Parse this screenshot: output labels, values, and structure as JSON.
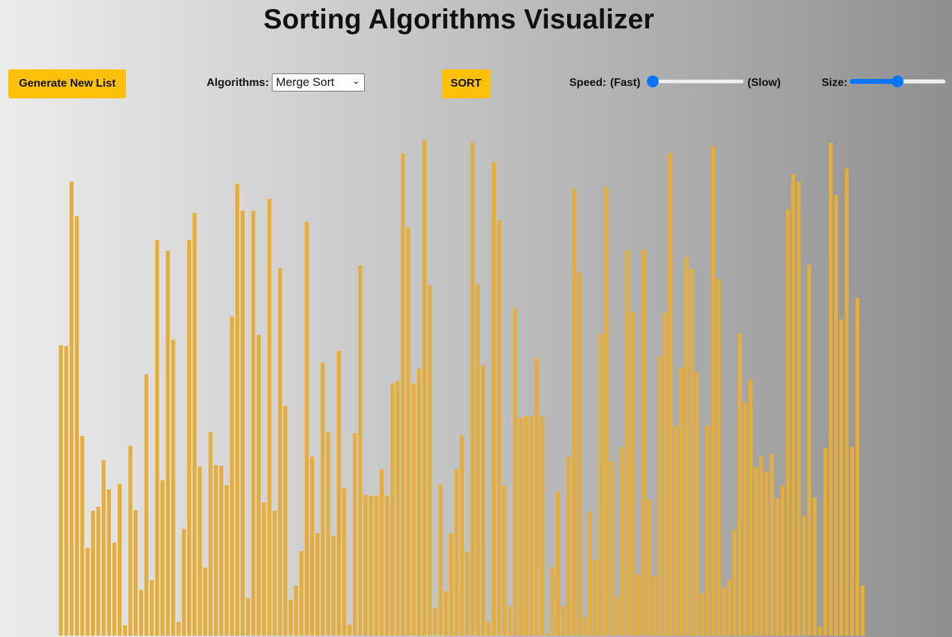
{
  "header": {
    "title": "Sorting Algorithms Visualizer"
  },
  "toolbar": {
    "generate_label": "Generate New List",
    "algorithms_label": "Algorithms:",
    "algorithm_selected": "Merge Sort",
    "sort_label": "SORT",
    "speed_label": "Speed:",
    "speed_fast": "(Fast)",
    "speed_slow": "(Slow)",
    "speed_value": 0.0,
    "size_label": "Size:",
    "size_value": 0.49
  },
  "colors": {
    "accent": "#ffc107",
    "bar": "#e6ad38",
    "slider": "#0075ff"
  },
  "bars": [
    419,
    418,
    655,
    605,
    288,
    127,
    180,
    186,
    253,
    211,
    134,
    219,
    15,
    274,
    181,
    66,
    377,
    80,
    571,
    224,
    555,
    427,
    20,
    154,
    571,
    610,
    244,
    98,
    294,
    246,
    245,
    217,
    460,
    652,
    613,
    54,
    613,
    434,
    192,
    630,
    180,
    530,
    331,
    52,
    72,
    122,
    597,
    258,
    148,
    394,
    293,
    144,
    411,
    213,
    16,
    292,
    534,
    203,
    202,
    202,
    240,
    202,
    364,
    368,
    696,
    589,
    364,
    385,
    715,
    506,
    40,
    218,
    64,
    148,
    240,
    289,
    121,
    712,
    507,
    390,
    20,
    683,
    599,
    216,
    42,
    472,
    314,
    317,
    317,
    401,
    316,
    3,
    98,
    207,
    42,
    258,
    645,
    524,
    27,
    179,
    109,
    435,
    647,
    251,
    56,
    272,
    556,
    467,
    88,
    557,
    197,
    86,
    403,
    466,
    696,
    302,
    387,
    546,
    529,
    380,
    61,
    303,
    706,
    515,
    69,
    81,
    153,
    436,
    336,
    370,
    243,
    258,
    236,
    262,
    198,
    217,
    615,
    666,
    655,
    172,
    535,
    199,
    13,
    270,
    711,
    636,
    456,
    674,
    272,
    487,
    72
  ]
}
